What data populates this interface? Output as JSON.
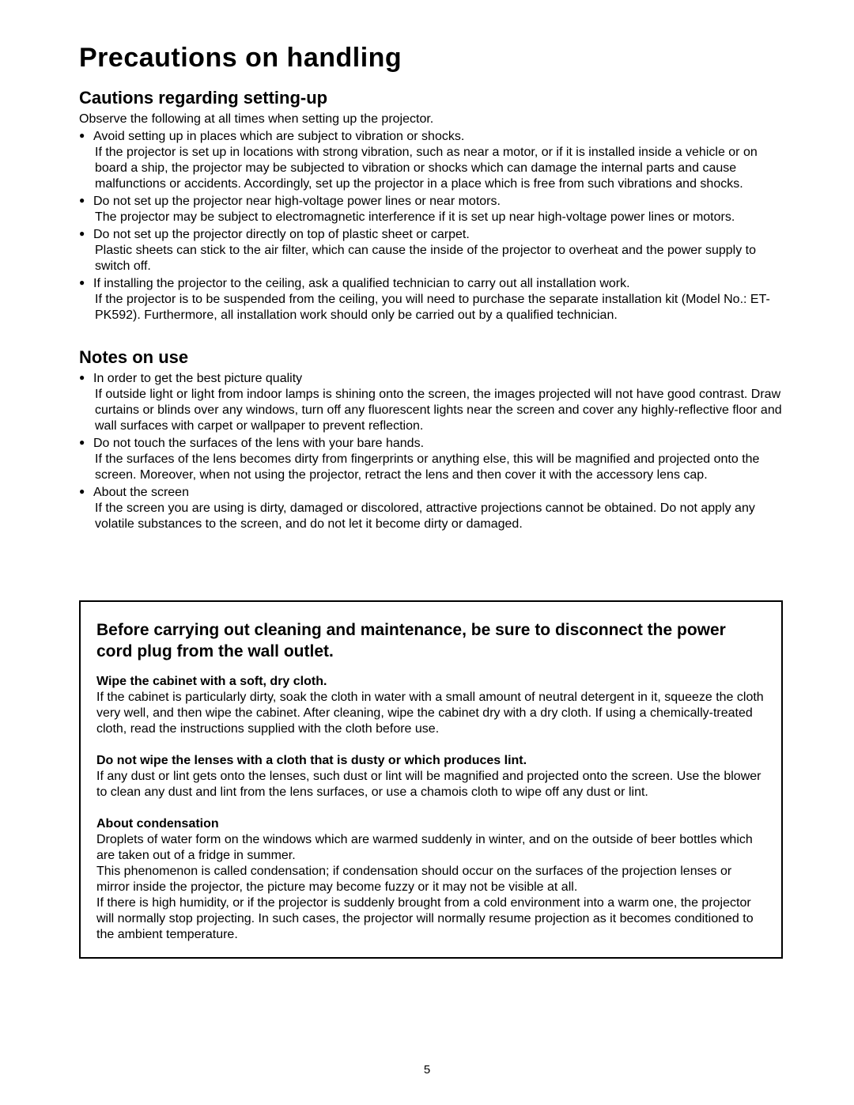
{
  "pageNumber": "5",
  "title": "Precautions on handling",
  "sections": {
    "cautions": {
      "heading": "Cautions regarding setting-up",
      "intro": "Observe the following at all times when setting up the projector.",
      "items": [
        {
          "head": "Avoid setting up in places which are subject to vibration or shocks.",
          "body": "If the projector is set up in locations with strong vibration, such as near a motor, or if it is installed inside a vehicle or on board a ship, the projector may be subjected to vibration or shocks which can damage the internal parts and cause malfunctions or accidents. Accordingly, set up the projector in a place which is free from such vibrations and shocks."
        },
        {
          "head": "Do not set up the projector near high-voltage power lines or near motors.",
          "body": "The projector may be subject to electromagnetic interference if it is set up near high-voltage power lines or motors."
        },
        {
          "head": "Do not set up the projector directly on top of plastic sheet or carpet.",
          "body": "Plastic sheets can stick to the air filter, which can cause the inside of the projector to overheat and the power supply to switch off."
        },
        {
          "head": "If installing the projector to the ceiling, ask a qualified technician to carry out all installation work.",
          "body": "If the projector is to be suspended from the ceiling, you will need to purchase the separate installation kit (Model No.: ET-PK592). Furthermore, all installation work should only be carried out by a qualified technician."
        }
      ]
    },
    "notes": {
      "heading": "Notes on use",
      "items": [
        {
          "head": "In order to get the best picture quality",
          "body": "If outside light or light from indoor lamps is shining onto the screen, the images projected will not have good contrast. Draw curtains or blinds over any windows, turn off any fluorescent lights near the screen and cover any highly-reflective floor and wall surfaces with carpet or wallpaper to prevent reflection."
        },
        {
          "head": "Do not touch the surfaces of the lens with your bare hands.",
          "body": "If the surfaces of the lens becomes dirty from fingerprints or anything else, this will be magnified and projected onto the screen. Moreover, when not using the projector, retract the lens and then cover it with the accessory lens cap."
        },
        {
          "head": "About the screen",
          "body": "If the screen you are using is dirty, damaged or discolored, attractive projections cannot be obtained. Do not apply any volatile substances to the screen, and do not let it become dirty or damaged."
        }
      ]
    },
    "warning": {
      "title": "Before carrying out cleaning and maintenance, be sure to disconnect the power cord plug from the wall outlet.",
      "blocks": [
        {
          "sub": "Wipe the cabinet with a soft, dry cloth.",
          "body": "If the cabinet is particularly dirty, soak the cloth in water with a small amount of neutral detergent in it, squeeze the cloth very well, and then wipe the cabinet. After cleaning, wipe the cabinet dry with a dry cloth. If using a chemically-treated cloth, read the instructions supplied with the cloth before use."
        },
        {
          "sub": "Do not wipe the lenses with a cloth that is dusty or which produces lint.",
          "body": "If any dust or lint gets onto the lenses, such dust or lint will be magnified and projected onto the screen. Use the blower to clean any dust and lint from the lens surfaces, or use a chamois cloth to wipe off any dust or lint."
        },
        {
          "sub": "About condensation",
          "body": "Droplets of water form on the windows which are warmed suddenly in winter, and on the outside of beer bottles which are taken out of a fridge in summer.\nThis phenomenon is called condensation; if condensation should occur on the surfaces of the projection lenses or mirror inside the projector, the picture may become fuzzy or it may not be visible at all.\nIf there is high humidity, or if the projector is suddenly brought from a cold environment into a warm one, the projector will normally stop projecting. In such cases, the projector will normally resume projection as it becomes conditioned to the ambient temperature."
        }
      ]
    }
  }
}
